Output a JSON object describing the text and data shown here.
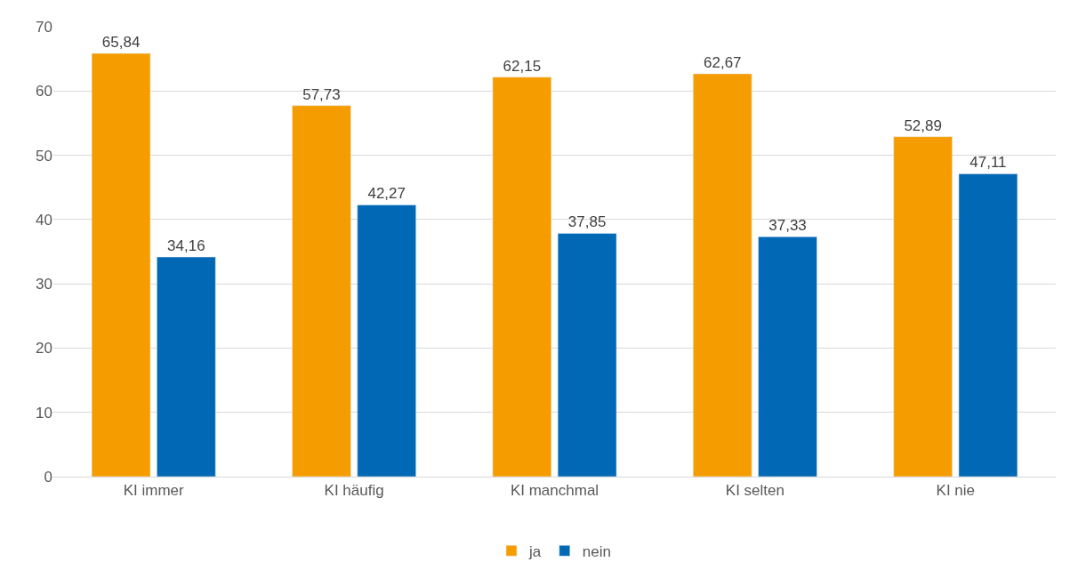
{
  "chart_data": {
    "type": "bar",
    "categories": [
      "KI immer",
      "KI häufig",
      "KI manchmal",
      "KI selten",
      "KI nie"
    ],
    "series": [
      {
        "name": "ja",
        "color": "#f59d00",
        "values": [
          65.84,
          57.73,
          62.15,
          62.67,
          52.89
        ],
        "value_labels": [
          "65,84",
          "57,73",
          "62,15",
          "62,67",
          "52,89"
        ]
      },
      {
        "name": "nein",
        "color": "#0068b4",
        "values": [
          34.16,
          42.27,
          37.85,
          37.33,
          47.11
        ],
        "value_labels": [
          "34,16",
          "42,27",
          "37,85",
          "37,33",
          "47,11"
        ]
      }
    ],
    "ylim": [
      0,
      70
    ],
    "yticks": [
      0,
      10,
      20,
      30,
      40,
      50,
      60,
      70
    ],
    "grid": "y",
    "legend": "bottom"
  }
}
